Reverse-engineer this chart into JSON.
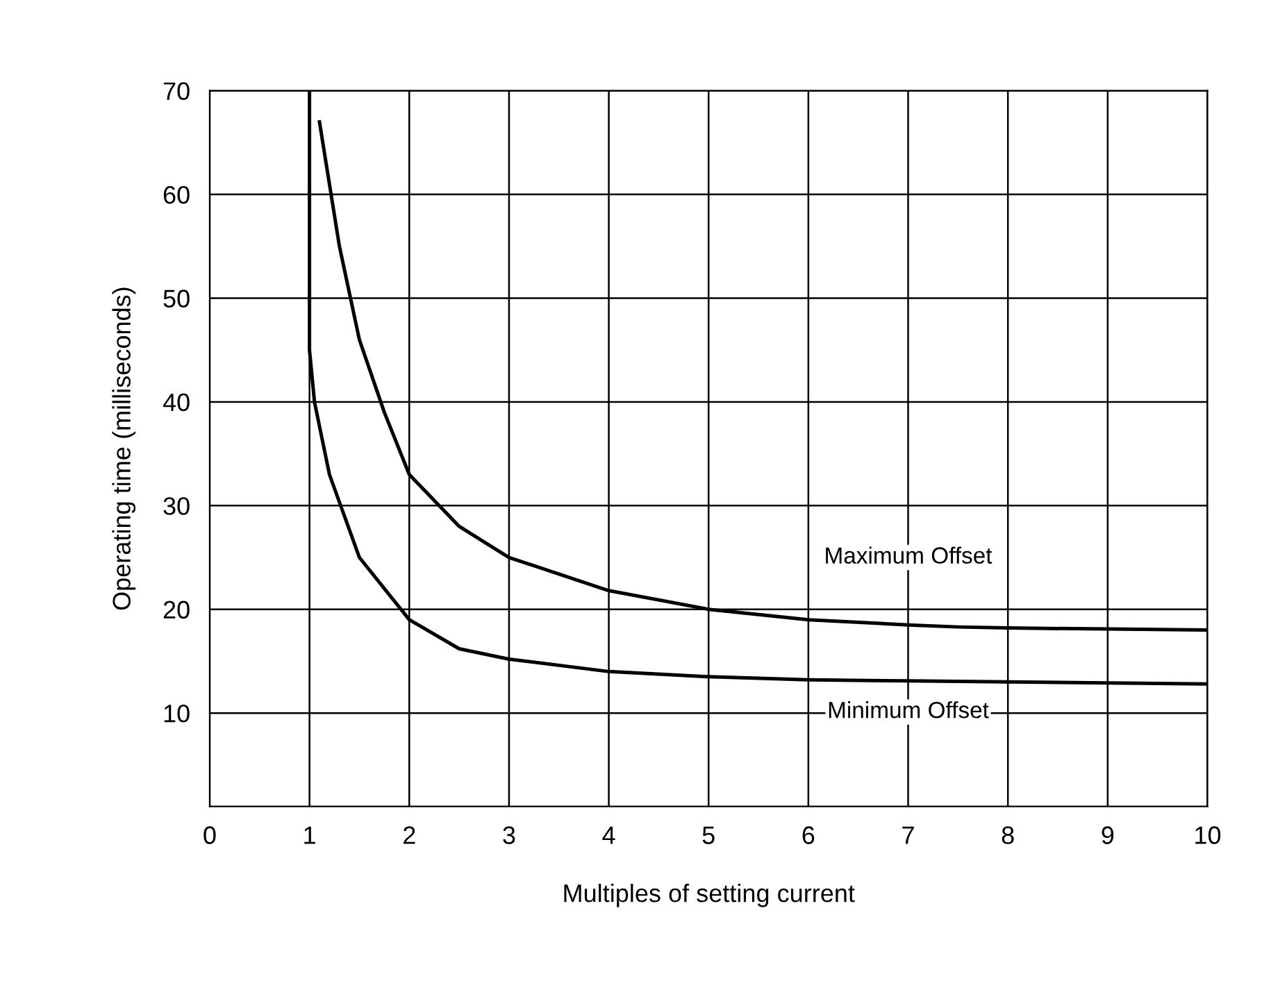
{
  "chart_data": {
    "type": "line",
    "xlabel": "Multiples of setting current",
    "ylabel": "Operating time (milliseconds)",
    "series": [
      {
        "name": "Maximum Offset",
        "color": "#000000",
        "x": [
          1.1,
          1.3,
          1.5,
          1.75,
          2,
          2.5,
          3,
          4,
          5,
          6,
          7,
          7.5,
          8,
          9,
          10
        ],
        "values": [
          67,
          55,
          46,
          39,
          33,
          28,
          25,
          21.8,
          20,
          19,
          18.5,
          18.3,
          18.2,
          18.1,
          18
        ]
      },
      {
        "name": "Minimum Offset",
        "color": "#000000",
        "x": [
          1,
          1,
          1.05,
          1.2,
          1.5,
          2,
          2.5,
          3,
          4,
          5,
          6,
          7,
          8,
          10
        ],
        "values": [
          70,
          45,
          40,
          33,
          25,
          19,
          16.2,
          15.2,
          14,
          13.5,
          13.2,
          13.1,
          13,
          12.8
        ]
      }
    ],
    "xlim": [
      0,
      10
    ],
    "ylim": [
      1,
      70
    ],
    "xticks": [
      0,
      1,
      2,
      3,
      4,
      5,
      6,
      7,
      8,
      9,
      10
    ],
    "yticks": [
      10,
      20,
      30,
      40,
      50,
      60,
      70
    ],
    "grid": true,
    "legend": false,
    "marker": "none",
    "line_style": "solid"
  }
}
